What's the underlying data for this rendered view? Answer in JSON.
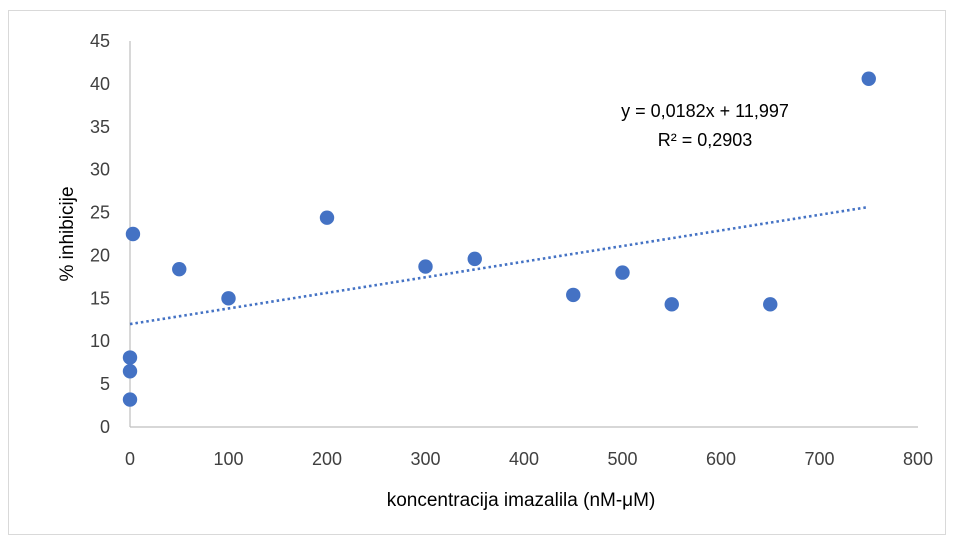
{
  "chart_data": {
    "type": "scatter",
    "title": "",
    "xlabel": "koncentracija imazalila (nM-μM)",
    "ylabel": "% inhibicije",
    "xlim": [
      0,
      800
    ],
    "ylim": [
      0,
      45
    ],
    "xticks": [
      0,
      100,
      200,
      300,
      400,
      500,
      600,
      700,
      800
    ],
    "yticks": [
      0,
      5,
      10,
      15,
      20,
      25,
      30,
      35,
      40,
      45
    ],
    "grid": false,
    "points": [
      {
        "x": 0,
        "y": 3.2
      },
      {
        "x": 0,
        "y": 6.5
      },
      {
        "x": 0,
        "y": 8.1
      },
      {
        "x": 3,
        "y": 22.5
      },
      {
        "x": 50,
        "y": 18.4
      },
      {
        "x": 100,
        "y": 15.0
      },
      {
        "x": 200,
        "y": 24.4
      },
      {
        "x": 300,
        "y": 18.7
      },
      {
        "x": 350,
        "y": 19.6
      },
      {
        "x": 450,
        "y": 15.4
      },
      {
        "x": 500,
        "y": 18.0
      },
      {
        "x": 550,
        "y": 14.3
      },
      {
        "x": 650,
        "y": 14.3
      },
      {
        "x": 750,
        "y": 40.6
      }
    ],
    "trendline": {
      "type": "linear",
      "slope": 0.0182,
      "intercept": 11.997,
      "x_range": [
        0,
        750
      ],
      "equation_label": "y = 0,0182x + 11,997",
      "r2_label": "R² = 0,2903",
      "style": "dotted"
    },
    "colors": {
      "marker": "#4472c4",
      "trendline": "#4472c4",
      "axis": "#bfbfbf"
    }
  }
}
